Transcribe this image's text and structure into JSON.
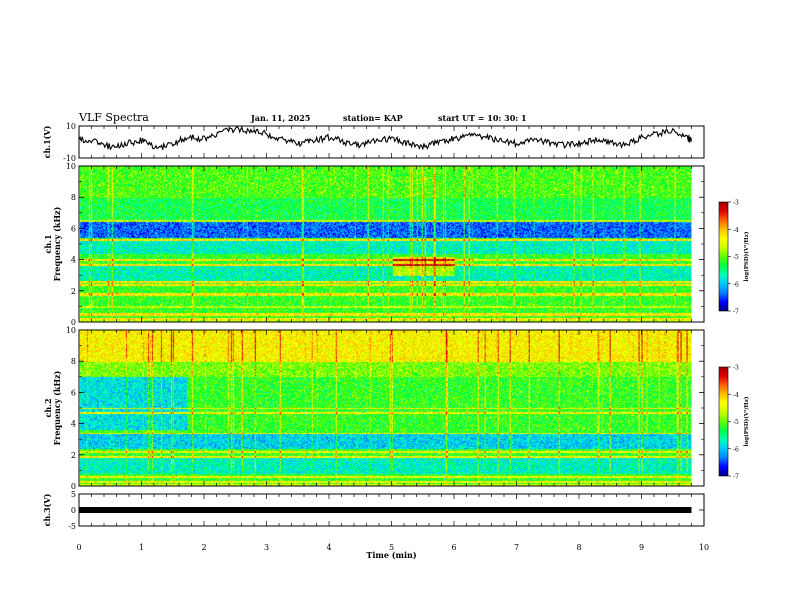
{
  "header": {
    "title": "VLF Spectra",
    "date": "Jan. 11, 2025",
    "station": "station= KAP",
    "start": "start  UT =   10: 30: 1"
  },
  "colors": {
    "palette": [
      "#000080",
      "#0000ff",
      "#0080ff",
      "#00c8ff",
      "#00ffb0",
      "#00ff40",
      "#60ff00",
      "#c8ff00",
      "#ffff00",
      "#ffc000",
      "#ff6000",
      "#e00000",
      "#a00000"
    ]
  },
  "chart_data": [
    {
      "type": "line",
      "panel": "waveform-ch1",
      "ylabel": "ch.1(V)",
      "ylim": [
        -10,
        10
      ],
      "yticks": [
        "10",
        "-10"
      ],
      "x": [
        0,
        0.25,
        0.5,
        0.75,
        1,
        1.25,
        1.5,
        1.75,
        2,
        2.25,
        2.5,
        2.75,
        3,
        3.25,
        3.5,
        3.75,
        4,
        4.25,
        4.5,
        4.75,
        5,
        5.25,
        5.5,
        5.75,
        6,
        6.25,
        6.5,
        6.75,
        7,
        7.25,
        7.5,
        7.75,
        8,
        8.25,
        8.5,
        8.75,
        9,
        9.25,
        9.5,
        9.75,
        9.8
      ],
      "values": [
        2,
        0,
        -3,
        -1,
        1,
        -4,
        -1,
        3,
        2,
        6,
        8,
        7,
        5,
        2,
        -1,
        1,
        3,
        0,
        -2,
        1,
        2,
        -1,
        -3,
        0,
        2,
        4,
        3,
        1,
        -1,
        2,
        0,
        -2,
        -1,
        1,
        0,
        -2,
        3,
        5,
        7,
        2,
        1
      ]
    },
    {
      "type": "heatmap",
      "panel": "spectrogram-ch1",
      "ylabel": "ch.1 Frequency (kHz)",
      "ylim": [
        0,
        10
      ],
      "yticks": [
        "10",
        "8",
        "6",
        "4",
        "2",
        "0"
      ],
      "zlabel": "log(PSD)(V²/Hz)",
      "zlim": [
        -7,
        -3
      ],
      "zticks": [
        "-3",
        "-4",
        "-5",
        "-6",
        "-7"
      ],
      "note": "Spectral power mostly -5 to -5.5; quieter band near 5.5-6.5 kHz; strong bands near 0.2, 1.8, 2.5 kHz"
    },
    {
      "type": "heatmap",
      "panel": "spectrogram-ch2",
      "ylabel": "ch.2 Frequency (kHz)",
      "ylim": [
        0,
        10
      ],
      "yticks": [
        "10",
        "8",
        "6",
        "4",
        "2",
        "0"
      ],
      "zlabel": "log(PSD)(V²/Hz)",
      "zlim": [
        -7,
        -3
      ],
      "zticks": [
        "-3",
        "-4",
        "-5",
        "-6",
        "-7"
      ],
      "note": "Higher power above 8 kHz; quieter region 3.5-7 kHz in first 1.7 min; strong bands near 0.3, 1.9 kHz"
    },
    {
      "type": "line",
      "panel": "waveform-ch3",
      "ylabel": "ch.3(V)",
      "ylim": [
        -5,
        5
      ],
      "yticks": [
        "5",
        "0",
        "-5"
      ],
      "x": [
        0,
        9.8
      ],
      "values": [
        0,
        0
      ],
      "xlabel": "Time (min)",
      "xlim": [
        0,
        10
      ],
      "xticks": [
        "0",
        "1",
        "2",
        "3",
        "4",
        "5",
        "6",
        "7",
        "8",
        "9",
        "10"
      ]
    }
  ]
}
